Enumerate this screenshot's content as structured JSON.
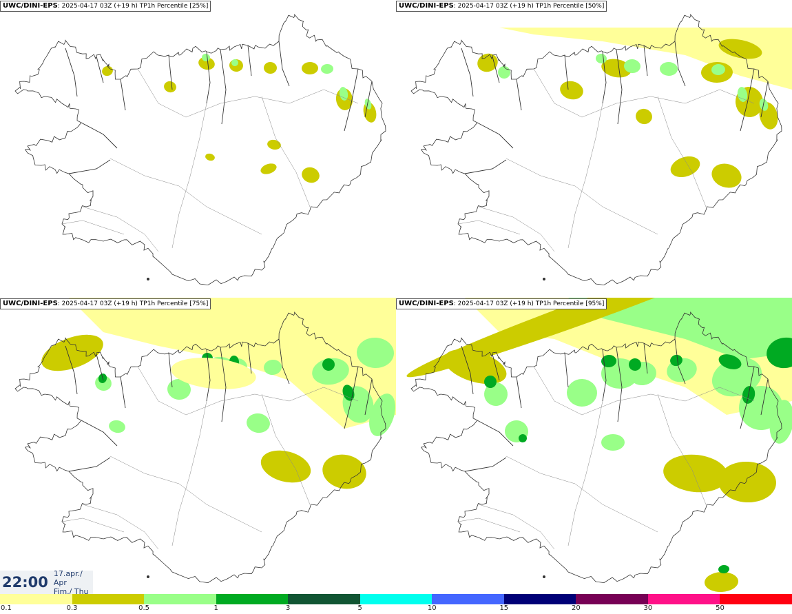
{
  "panels": [
    {
      "model": "UWC/DINI-EPS",
      "run": "2025-04-17 03Z",
      "lead": "(+19 h)",
      "field": "TP1h Percentile",
      "pct": "[25%]",
      "level": 0
    },
    {
      "model": "UWC/DINI-EPS",
      "run": "2025-04-17 03Z",
      "lead": "(+19 h)",
      "field": "TP1h Percentile",
      "pct": "[50%]",
      "level": 1
    },
    {
      "model": "UWC/DINI-EPS",
      "run": "2025-04-17 03Z",
      "lead": "(+19 h)",
      "field": "TP1h Percentile",
      "pct": "[75%]",
      "level": 2
    },
    {
      "model": "UWC/DINI-EPS",
      "run": "2025-04-17 03Z",
      "lead": "(+19 h)",
      "field": "TP1h Percentile",
      "pct": "[95%]",
      "level": 3
    }
  ],
  "timestamp": {
    "time": "22:00",
    "date": "17.apr./ Apr",
    "day": "Fim./ Thu"
  },
  "legend": {
    "colors": [
      "#ffff99",
      "#cccc00",
      "#99ff88",
      "#00aa22",
      "#115533",
      "#00ffee",
      "#4466ff",
      "#000077",
      "#770055",
      "#ff1188",
      "#ff0011"
    ],
    "ticks": [
      "0.1",
      "0.3",
      "0.5",
      "1",
      "3",
      "5",
      "10",
      "15",
      "20",
      "30",
      "50"
    ]
  }
}
